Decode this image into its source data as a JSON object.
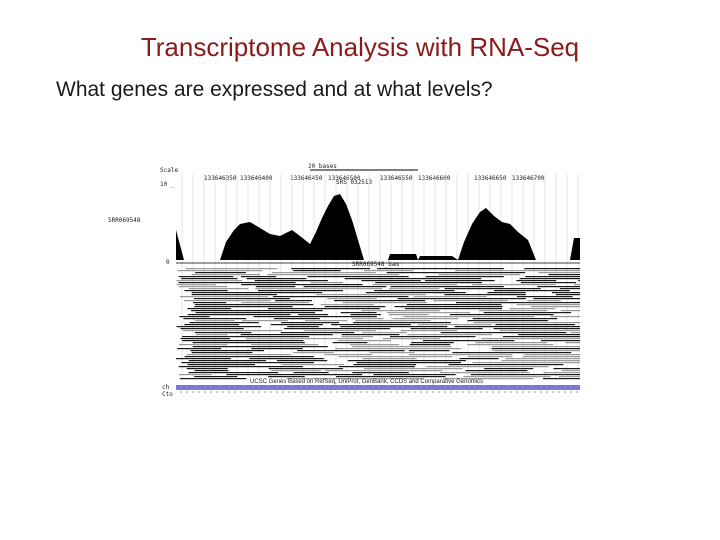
{
  "slide": {
    "title": "Transcriptome Analysis with RNA-Seq",
    "subtitle": "What genes are expressed and at what levels?"
  },
  "figure": {
    "scale_label": "20 bases",
    "gene_label": "SRS 032513",
    "track_label_left": "SRR069548",
    "axis_top_label": "Scale",
    "axis_zero_label": "0",
    "coverage_axis_label": "10 _",
    "bam_track_label": "SRR069548_bam",
    "position_labels": [
      "133646350",
      "133646400",
      "133646450",
      "133646500",
      "133646550",
      "133646600",
      "133646650",
      "133646700"
    ],
    "footer_label": "UCSC Genes Based on RefSeq, UniProt, GenBank, CCDS and Comparative Genomics",
    "colors": {
      "coverage": "#000000",
      "reads_dark": "#1a1a1a",
      "reads_gray": "#9a9a9a",
      "gene_track": "#7b7bd6",
      "grid": "#c8c8c8"
    }
  }
}
